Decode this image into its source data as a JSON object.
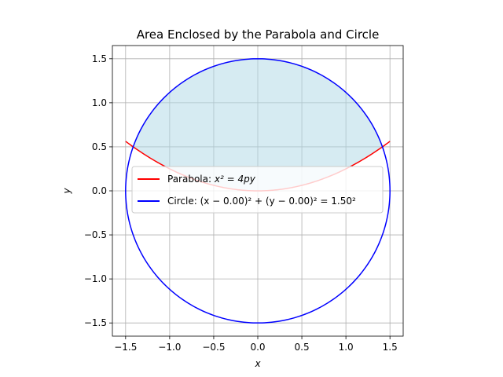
{
  "chart_data": {
    "type": "line",
    "title": "Area Enclosed by the Parabola and Circle",
    "xlabel": "x",
    "ylabel": "y",
    "xlim": [
      -1.65,
      1.65
    ],
    "ylim": [
      -1.65,
      1.65
    ],
    "xticks": [
      -1.5,
      -1.0,
      -0.5,
      0.0,
      0.5,
      1.0,
      1.5
    ],
    "yticks": [
      -1.5,
      -1.0,
      -0.5,
      0.0,
      0.5,
      1.0,
      1.5
    ],
    "xtick_labels": [
      "−1.5",
      "−1.0",
      "−0.5",
      "0.0",
      "0.5",
      "1.0",
      "1.5"
    ],
    "ytick_labels": [
      "−1.5",
      "−1.0",
      "−0.5",
      "0.0",
      "0.5",
      "1.0",
      "1.5"
    ],
    "grid": true,
    "legend_position": "center",
    "series": [
      {
        "name": "Parabola: x² = 4py",
        "color": "#ff0000",
        "equation": "y = x^2 / 4",
        "x": [
          -1.5,
          -1.25,
          -1.0,
          -0.75,
          -0.5,
          -0.25,
          0.0,
          0.25,
          0.5,
          0.75,
          1.0,
          1.25,
          1.5
        ],
        "y": [
          0.5625,
          0.3906,
          0.25,
          0.1406,
          0.0625,
          0.0156,
          0.0,
          0.0156,
          0.0625,
          0.1406,
          0.25,
          0.3906,
          0.5625
        ]
      },
      {
        "name": "Circle: (x − 0.00)² + (y − 0.00)² = 1.50²",
        "color": "#0000ff",
        "center": [
          0.0,
          0.0
        ],
        "radius": 1.5
      }
    ],
    "shaded_region": {
      "color": "#add8e6",
      "between": "parabola and upper circle",
      "x_range": [
        -1.4311,
        1.4311
      ]
    }
  },
  "legend": {
    "parabola_prefix": "Parabola: ",
    "parabola_math": "x² = 4py",
    "circle_prefix": "Circle: ",
    "circle_math": "(x − 0.00)² + (y − 0.00)² = 1.50²"
  }
}
